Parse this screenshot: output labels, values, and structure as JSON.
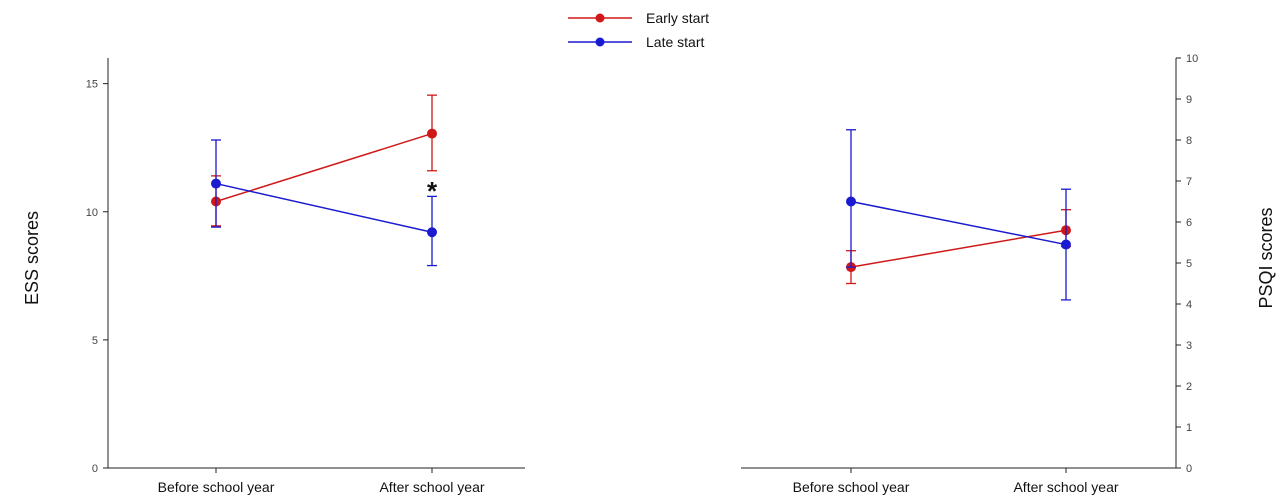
{
  "colors": {
    "early": "#d01818",
    "late": "#1a1ad0",
    "axis": "#222222"
  },
  "legend": {
    "placement": "top-center",
    "entries": [
      "Early start",
      "Late start"
    ]
  },
  "chart_data": [
    {
      "type": "line",
      "categories": [
        "Before school year",
        "After school year"
      ],
      "ylabel": "ESS scores",
      "ylim": [
        0,
        16
      ],
      "yticks": [
        0,
        5,
        10,
        15
      ],
      "grid": false,
      "series": [
        {
          "name": "Early start",
          "values": [
            10.4,
            13.05
          ],
          "err_low": [
            9.45,
            11.6
          ],
          "err_high": [
            11.4,
            14.55
          ]
        },
        {
          "name": "Late start",
          "values": [
            11.1,
            9.2
          ],
          "err_low": [
            9.4,
            7.9
          ],
          "err_high": [
            12.8,
            10.6
          ]
        }
      ],
      "annotations": [
        {
          "text": "*",
          "category": "After school year",
          "value": 11.0
        }
      ]
    },
    {
      "type": "line",
      "categories": [
        "Before school year",
        "After school year"
      ],
      "ylabel": "PSQI scores",
      "ylim": [
        0,
        10
      ],
      "yticks": [
        0,
        1,
        2,
        3,
        4,
        5,
        6,
        7,
        8,
        9,
        10
      ],
      "y_axis_side": "right",
      "grid": false,
      "series": [
        {
          "name": "Early start",
          "values": [
            4.9,
            5.8
          ],
          "err_low": [
            4.5,
            5.4
          ],
          "err_high": [
            5.3,
            6.3
          ]
        },
        {
          "name": "Late start",
          "values": [
            6.5,
            5.45
          ],
          "err_low": [
            4.9,
            4.1
          ],
          "err_high": [
            8.25,
            6.8
          ]
        }
      ]
    }
  ]
}
